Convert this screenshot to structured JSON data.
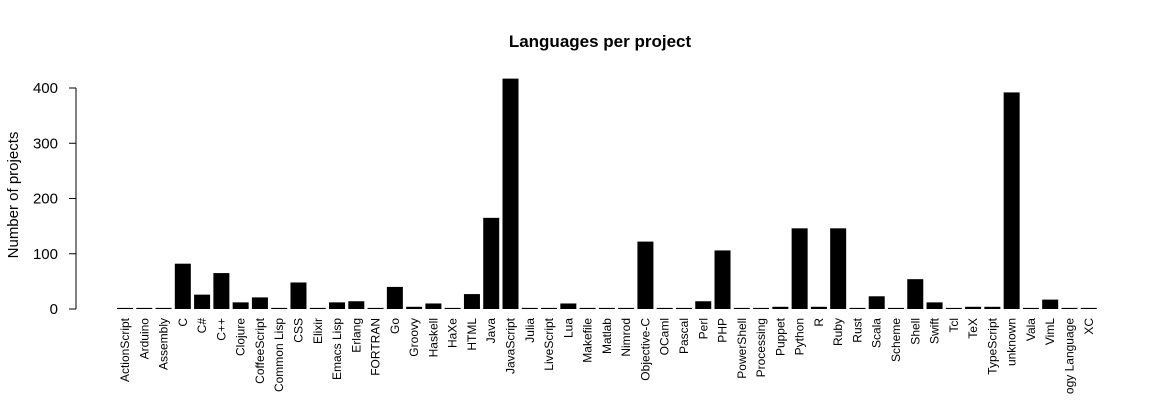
{
  "chart_data": {
    "type": "bar",
    "title": "Languages per project",
    "xlabel": "",
    "ylabel": "Number of projects",
    "ylim": [
      0,
      420
    ],
    "yticks": [
      0,
      100,
      200,
      300,
      400
    ],
    "grid": false,
    "bar_color": "#000000",
    "categories": [
      "ActionScript",
      "Arduino",
      "Assembly",
      "C",
      "C#",
      "C++",
      "Clojure",
      "CoffeeScript",
      "Common Lisp",
      "CSS",
      "Elixir",
      "Emacs Lisp",
      "Erlang",
      "FORTRAN",
      "Go",
      "Groovy",
      "Haskell",
      "HaXe",
      "HTML",
      "Java",
      "JavaScript",
      "Julia",
      "LiveScript",
      "Lua",
      "Makefile",
      "Matlab",
      "Nimrod",
      "Objective-C",
      "OCaml",
      "Pascal",
      "Perl",
      "PHP",
      "PowerShell",
      "Processing",
      "Puppet",
      "Python",
      "R",
      "Ruby",
      "Rust",
      "Scala",
      "Scheme",
      "Shell",
      "Swift",
      "Tcl",
      "TeX",
      "TypeScript",
      "unknown",
      "Vala",
      "VimL",
      "ogy Language",
      "XC"
    ],
    "values": [
      2,
      2,
      2,
      82,
      26,
      65,
      12,
      21,
      2,
      48,
      2,
      12,
      14,
      2,
      40,
      4,
      10,
      2,
      27,
      165,
      417,
      2,
      2,
      10,
      2,
      2,
      2,
      122,
      2,
      2,
      14,
      106,
      2,
      2,
      4,
      146,
      4,
      146,
      2,
      23,
      2,
      54,
      12,
      2,
      4,
      4,
      392,
      2,
      17,
      2,
      2
    ]
  }
}
